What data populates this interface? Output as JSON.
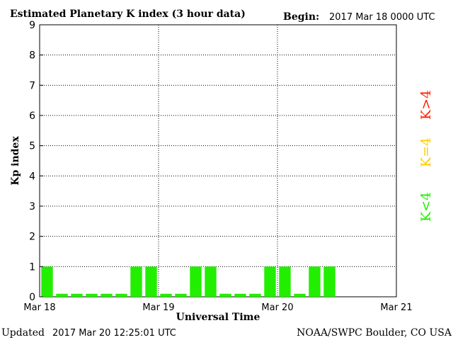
{
  "header": {
    "title": "Estimated Planetary K index (3 hour data)",
    "begin_label": "Begin:",
    "begin_value": "2017 Mar 18 0000 UTC"
  },
  "footer": {
    "updated_label": "Updated",
    "updated_value": "2017 Mar 20 12:25:01 UTC",
    "source": "NOAA/SWPC Boulder, CO USA"
  },
  "legend": {
    "items": [
      {
        "label": "K>4",
        "color": "#ff2200"
      },
      {
        "label": "K=4",
        "color": "#ffcc00"
      },
      {
        "label": "K<4",
        "color": "#22ee00"
      }
    ]
  },
  "chart_data": {
    "type": "bar",
    "title": "Estimated Planetary K index (3 hour data)",
    "xlabel": "Universal Time",
    "ylabel": "Kp index",
    "ylim": [
      0,
      9
    ],
    "yticks": [
      0,
      1,
      2,
      3,
      4,
      5,
      6,
      7,
      8,
      9
    ],
    "x_tick_labels": [
      "Mar 18",
      "Mar 19",
      "Mar 20",
      "Mar 21"
    ],
    "interval_hours": 3,
    "grid": true,
    "bar_color": "#22ee00",
    "values": [
      1,
      0.1,
      0.1,
      0.1,
      0.1,
      0.1,
      1,
      1,
      0.1,
      0.1,
      1,
      1,
      0.1,
      0.1,
      0.1,
      1,
      1,
      0.1,
      1,
      1
    ]
  }
}
